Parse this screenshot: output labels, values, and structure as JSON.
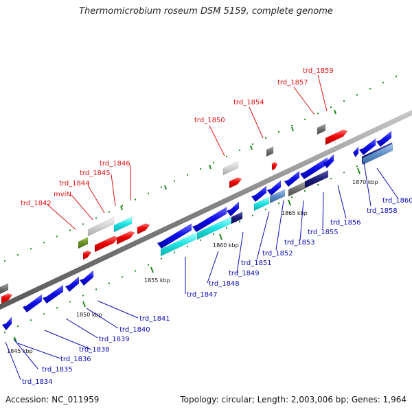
{
  "title": "Thermomicrobium roseum DSM 5159, complete genome",
  "accession": "Accession: NC_011959",
  "topology": "Topology: circular; Length: 2,003,006 bp; Genes: 1,964",
  "colors": {
    "forward_label": "#dd1111",
    "reverse_label": "#0a0ab4",
    "backbone": "#808080",
    "tick": "#1a8a1a"
  },
  "scale_ticks": [
    "1845 kbp",
    "1850 kbp",
    "1855 kbp",
    "1860 kbp",
    "1865 kbp",
    "1870 kbp"
  ],
  "forward_genes": [
    "trd_1842",
    "mviN",
    "trd_1844",
    "trd_1845",
    "trd_1846",
    "trd_1850",
    "trd_1854",
    "trd_1857",
    "trd_1859"
  ],
  "reverse_genes": [
    "trd_1834",
    "trd_1835",
    "trd_1836",
    "trd_1838",
    "trd_1839",
    "trd_1840",
    "trd_1841",
    "trd_1847",
    "trd_1848",
    "trd_1849",
    "trd_1851",
    "trd_1852",
    "trd_1853",
    "trd_1855",
    "trd_1856",
    "trd_1858",
    "trd_1860"
  ]
}
